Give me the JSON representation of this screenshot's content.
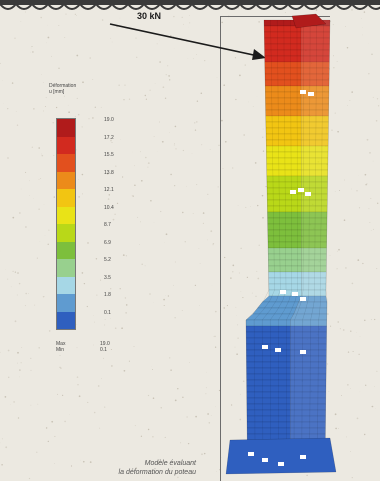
{
  "load": {
    "label": "30 kN"
  },
  "legend": {
    "title_line1": "Déformation",
    "title_line2": "u [mm]",
    "ticks": [
      "19.0",
      "17.2",
      "15.5",
      "13.8",
      "12.1",
      "10.4",
      "8.7",
      "6.9",
      "5.2",
      "3.5",
      "1.8",
      "0.1"
    ],
    "colors": [
      "#b01b1b",
      "#d22a1f",
      "#e2501e",
      "#ec8b1a",
      "#f2c512",
      "#e9e317",
      "#b9d818",
      "#7dbf3c",
      "#98d08e",
      "#a6d7e6",
      "#5f9bd0",
      "#2f5fbf"
    ],
    "max_label": "Max",
    "max_value": "19.0",
    "min_label": "Min",
    "min_value": "0.1"
  },
  "caption": {
    "line1": "Modèle évaluant",
    "line2": "la déformation du poteau"
  }
}
